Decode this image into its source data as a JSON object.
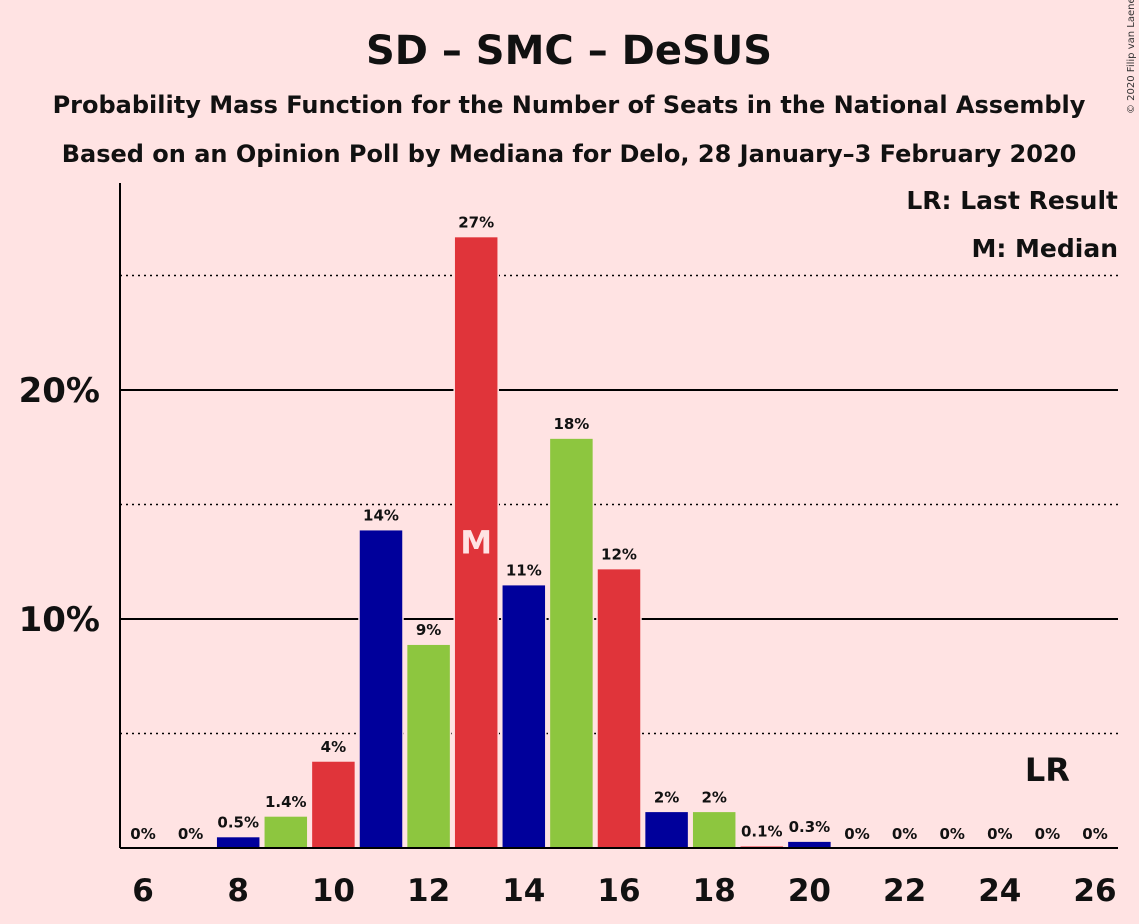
{
  "chart_data": {
    "type": "bar",
    "title": "SD – SMC – DeSUS",
    "subtitle_lines": [
      "Probability Mass Function for the Number of Seats in the National Assembly",
      "Based on an Opinion Poll by Mediana for Delo, 28 January–3 February 2020"
    ],
    "copyright": "© 2020 Filip van Laenen",
    "legend": [
      "LR: Last Result",
      "M: Median"
    ],
    "legend_placement": "top-right",
    "x": [
      6,
      7,
      8,
      9,
      10,
      11,
      12,
      13,
      14,
      15,
      16,
      17,
      18,
      19,
      20,
      21,
      22,
      23,
      24,
      25,
      26
    ],
    "values": [
      0,
      0,
      0.5,
      1.4,
      3.8,
      13.9,
      8.9,
      26.7,
      11.5,
      17.9,
      12.2,
      1.6,
      1.6,
      0.1,
      0.3,
      0,
      0,
      0,
      0,
      0,
      0
    ],
    "labels": [
      "0%",
      "0%",
      "0.5%",
      "1.4%",
      "4%",
      "14%",
      "9%",
      "27%",
      "11%",
      "18%",
      "12%",
      "2%",
      "2%",
      "0.1%",
      "0.3%",
      "0%",
      "0%",
      "0%",
      "0%",
      "0%",
      "0%"
    ],
    "x_ticks": [
      6,
      8,
      10,
      12,
      14,
      16,
      18,
      20,
      22,
      24,
      26
    ],
    "y_ticks": [
      {
        "value": 10,
        "label": "10%"
      },
      {
        "value": 20,
        "label": "20%"
      }
    ],
    "y_minor_gridlines": [
      5,
      15,
      25
    ],
    "ylim": [
      0,
      29
    ],
    "median": {
      "seat": 13,
      "label": "M"
    },
    "last_result": {
      "seat": 25,
      "label": "LR"
    },
    "colors": {
      "background": "#FFE3E3",
      "SD": "#8DC63F",
      "SMC": "#E0343A",
      "DeSUS": "#00009B"
    },
    "bar_color_cycle": [
      "SD",
      "SMC",
      "DeSUS"
    ]
  }
}
